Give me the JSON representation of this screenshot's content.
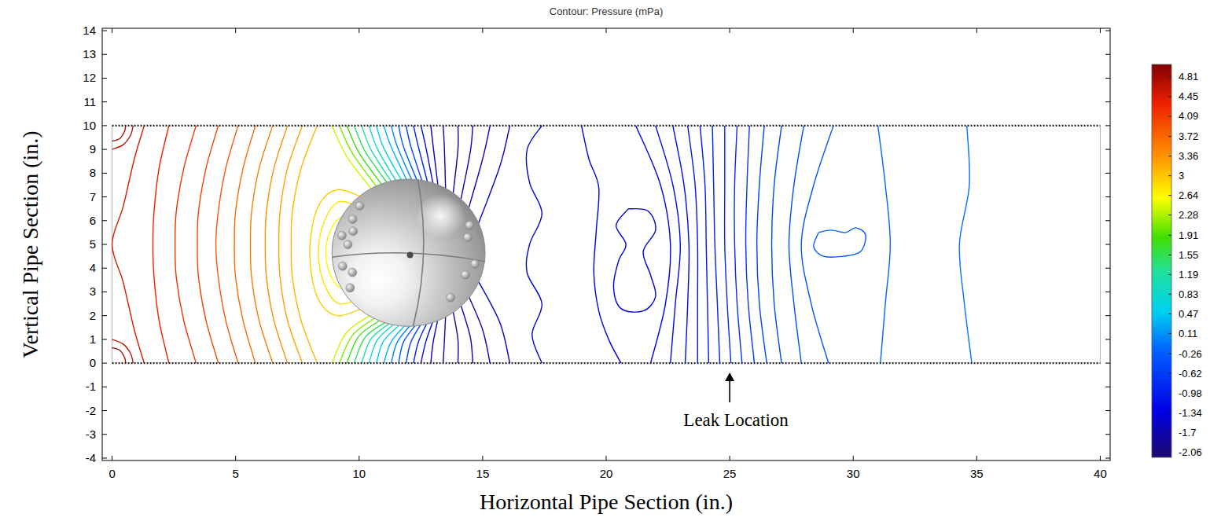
{
  "chart_data": {
    "type": "contour",
    "title": "Contour: Pressure (mPa)",
    "x_label": "Horizontal Pipe Section (in.)",
    "y_label": "Vertical Pipe Section (in.)",
    "xlim": [
      -0.4,
      40.4
    ],
    "ylim": [
      -4.1,
      14.1
    ],
    "xticks": [
      0,
      5,
      10,
      15,
      20,
      25,
      30,
      35,
      40
    ],
    "yticks": [
      -4,
      -3,
      -2,
      -1,
      0,
      1,
      2,
      3,
      4,
      5,
      6,
      7,
      8,
      9,
      10,
      11,
      12,
      13,
      14
    ],
    "colorbar": {
      "range": [
        -2.16,
        5.04
      ],
      "ticks": [
        4.81,
        4.45,
        4.09,
        3.72,
        3.36,
        3,
        2.64,
        2.28,
        1.91,
        1.55,
        1.19,
        0.83,
        0.47,
        0.11,
        -0.26,
        -0.62,
        -0.98,
        -1.34,
        -1.7,
        -2.06
      ]
    },
    "pipe": {
      "x": [
        0,
        40
      ],
      "y": [
        0,
        10
      ]
    },
    "sphere": {
      "center": [
        12,
        4.65
      ],
      "radius": 3.1
    },
    "annotation": {
      "text": "Leak Location",
      "x": 25
    },
    "contours": [
      {
        "level": 4.81,
        "x": [
          0,
          0.3,
          0.5,
          0.55
        ],
        "y": [
          9.35,
          9.45,
          9.75,
          10
        ]
      },
      {
        "level": 4.81,
        "x": [
          0,
          0.3,
          0.5,
          0.55
        ],
        "y": [
          0.65,
          0.55,
          0.25,
          0
        ]
      },
      {
        "level": 4.63,
        "x": [
          0,
          0.45,
          0.75,
          0.85
        ],
        "y": [
          9.0,
          9.2,
          9.6,
          10
        ]
      },
      {
        "level": 4.63,
        "x": [
          0,
          0.45,
          0.75,
          0.85
        ],
        "y": [
          1.0,
          0.8,
          0.4,
          0
        ]
      },
      {
        "level": 4.45,
        "x": [
          1.3,
          0.9,
          0.45,
          0,
          0.45,
          0.9,
          1.3
        ],
        "y": [
          10,
          8.6,
          6.6,
          5,
          3.4,
          1.4,
          0
        ]
      },
      {
        "level": 4.3,
        "x": [
          2.3,
          1.9,
          1.7,
          1.65,
          1.7,
          1.9,
          2.3
        ],
        "y": [
          10,
          8.2,
          6.4,
          5,
          3.6,
          1.8,
          0
        ]
      },
      {
        "level": 4.15,
        "x": [
          3.4,
          2.9,
          2.6,
          2.55,
          2.6,
          2.9,
          3.4
        ],
        "y": [
          10,
          8.2,
          6.4,
          5,
          3.6,
          1.8,
          0
        ]
      },
      {
        "level": 4.0,
        "x": [
          4.3,
          3.8,
          3.5,
          3.45,
          3.5,
          3.8,
          4.3
        ],
        "y": [
          10,
          8.2,
          6.4,
          5,
          3.6,
          1.8,
          0
        ]
      },
      {
        "level": 3.85,
        "x": [
          5.1,
          4.6,
          4.3,
          4.2,
          4.3,
          4.6,
          5.1
        ],
        "y": [
          10,
          8.2,
          6.4,
          5,
          3.6,
          1.8,
          0
        ]
      },
      {
        "level": 3.7,
        "x": [
          5.8,
          5.3,
          5.0,
          4.95,
          5.0,
          5.3,
          5.8
        ],
        "y": [
          10,
          8.2,
          6.4,
          5,
          3.6,
          1.8,
          0
        ]
      },
      {
        "level": 3.55,
        "x": [
          6.5,
          5.95,
          5.65,
          5.6,
          5.65,
          5.95,
          6.5
        ],
        "y": [
          10,
          8.2,
          6.4,
          5,
          3.6,
          1.8,
          0
        ]
      },
      {
        "level": 3.4,
        "x": [
          7.1,
          6.55,
          6.25,
          6.2,
          6.25,
          6.55,
          7.1
        ],
        "y": [
          10,
          8.2,
          6.4,
          5,
          3.6,
          1.8,
          0
        ]
      },
      {
        "level": 3.25,
        "x": [
          7.7,
          7.1,
          6.8,
          6.75,
          6.8,
          7.1,
          7.7
        ],
        "y": [
          10,
          8.2,
          6.4,
          5,
          3.6,
          1.8,
          0
        ]
      },
      {
        "level": 3.1,
        "x": [
          8.3,
          7.65,
          7.3,
          7.25,
          7.3,
          7.65,
          8.3
        ],
        "y": [
          10,
          8.2,
          6.4,
          5,
          3.6,
          1.8,
          0
        ]
      },
      {
        "level": 2.95,
        "x": [
          10.3,
          9.1,
          8.3,
          8.0,
          8.3,
          9.1,
          10.3
        ],
        "y": [
          6.9,
          7.3,
          6.5,
          4.65,
          2.8,
          2.0,
          2.4
        ]
      },
      {
        "level": 2.8,
        "x": [
          10.2,
          9.2,
          8.6,
          8.35,
          8.6,
          9.2,
          10.2
        ],
        "y": [
          6.5,
          6.8,
          6.0,
          4.65,
          3.3,
          2.5,
          2.8
        ]
      },
      {
        "level": 2.65,
        "x": [
          10.0,
          9.2,
          8.8,
          8.65,
          8.8,
          9.2,
          10.0
        ],
        "y": [
          6.1,
          6.1,
          5.5,
          4.65,
          3.8,
          3.2,
          3.2
        ]
      },
      {
        "level": 2.4,
        "x": [
          8.9,
          9.5,
          10.6
        ],
        "y": [
          10,
          8.7,
          7.2
        ]
      },
      {
        "level": 2.4,
        "x": [
          8.9,
          9.5,
          10.6
        ],
        "y": [
          0,
          1.3,
          2.1
        ]
      },
      {
        "level": 2.1,
        "x": [
          9.2,
          9.75,
          10.8
        ],
        "y": [
          10,
          8.8,
          7.3
        ]
      },
      {
        "level": 2.1,
        "x": [
          9.2,
          9.75,
          10.8
        ],
        "y": [
          0,
          1.2,
          2.0
        ]
      },
      {
        "level": 1.8,
        "x": [
          9.5,
          10.0,
          11.0
        ],
        "y": [
          10,
          8.85,
          7.4
        ]
      },
      {
        "level": 1.8,
        "x": [
          9.5,
          10.0,
          11.0
        ],
        "y": [
          0,
          1.15,
          1.9
        ]
      },
      {
        "level": 1.5,
        "x": [
          9.8,
          10.25,
          11.2
        ],
        "y": [
          10,
          8.9,
          7.5
        ]
      },
      {
        "level": 1.5,
        "x": [
          9.8,
          10.25,
          11.2
        ],
        "y": [
          0,
          1.1,
          1.8
        ]
      },
      {
        "level": 1.2,
        "x": [
          10.1,
          10.5,
          11.4
        ],
        "y": [
          10,
          8.95,
          7.5
        ]
      },
      {
        "level": 1.2,
        "x": [
          10.1,
          10.5,
          11.4
        ],
        "y": [
          0,
          1.05,
          1.8
        ]
      },
      {
        "level": 0.9,
        "x": [
          10.4,
          10.75,
          11.6
        ],
        "y": [
          10,
          9.0,
          7.5
        ]
      },
      {
        "level": 0.9,
        "x": [
          10.4,
          10.75,
          11.6
        ],
        "y": [
          0,
          1.0,
          1.8
        ]
      },
      {
        "level": 0.6,
        "x": [
          10.7,
          11.0,
          11.8
        ],
        "y": [
          10,
          9.05,
          7.55
        ]
      },
      {
        "level": 0.6,
        "x": [
          10.7,
          11.0,
          11.8
        ],
        "y": [
          0,
          0.95,
          1.75
        ]
      },
      {
        "level": 0.3,
        "x": [
          11.0,
          11.3,
          12.0
        ],
        "y": [
          10,
          9.1,
          7.55
        ]
      },
      {
        "level": 0.3,
        "x": [
          11.0,
          11.3,
          12.0
        ],
        "y": [
          0,
          0.9,
          1.75
        ]
      },
      {
        "level": 0.0,
        "x": [
          11.3,
          11.55,
          12.2
        ],
        "y": [
          10,
          9.1,
          7.55
        ]
      },
      {
        "level": 0.0,
        "x": [
          11.3,
          11.55,
          12.2
        ],
        "y": [
          0,
          0.9,
          1.75
        ]
      },
      {
        "level": -0.3,
        "x": [
          11.6,
          11.8,
          12.4
        ],
        "y": [
          10,
          9.1,
          7.55
        ]
      },
      {
        "level": -0.3,
        "x": [
          11.6,
          11.8,
          12.4
        ],
        "y": [
          0,
          0.9,
          1.75
        ]
      },
      {
        "level": -0.6,
        "x": [
          11.9,
          12.1,
          12.6
        ],
        "y": [
          10,
          9.1,
          7.5
        ]
      },
      {
        "level": -0.6,
        "x": [
          11.9,
          12.1,
          12.6
        ],
        "y": [
          0,
          0.9,
          1.8
        ]
      },
      {
        "level": -0.9,
        "x": [
          12.2,
          12.4,
          12.8
        ],
        "y": [
          10,
          9.1,
          7.5
        ]
      },
      {
        "level": -0.9,
        "x": [
          12.2,
          12.4,
          12.8
        ],
        "y": [
          0,
          0.9,
          1.8
        ]
      },
      {
        "level": -1.2,
        "x": [
          12.5,
          12.7,
          13.0
        ],
        "y": [
          10,
          9.1,
          7.5
        ]
      },
      {
        "level": -1.2,
        "x": [
          12.5,
          12.7,
          13.0
        ],
        "y": [
          0,
          0.9,
          1.8
        ]
      },
      {
        "level": -1.5,
        "x": [
          12.9,
          13.0,
          13.2
        ],
        "y": [
          10,
          9.1,
          7.4
        ]
      },
      {
        "level": -1.5,
        "x": [
          12.9,
          13.0,
          13.2
        ],
        "y": [
          0,
          0.9,
          1.9
        ]
      },
      {
        "level": -1.8,
        "x": [
          13.4,
          13.45,
          13.5
        ],
        "y": [
          10,
          9.1,
          7.3
        ]
      },
      {
        "level": -1.8,
        "x": [
          13.4,
          13.45,
          13.5
        ],
        "y": [
          0,
          0.9,
          2.0
        ]
      },
      {
        "level": -1.9,
        "x": [
          14.0,
          14.0,
          13.8
        ],
        "y": [
          10,
          9.0,
          7.1
        ]
      },
      {
        "level": -1.9,
        "x": [
          14.0,
          14.0,
          13.8
        ],
        "y": [
          0,
          1.0,
          2.2
        ]
      },
      {
        "level": -1.7,
        "x": [
          14.6,
          14.5,
          14.1
        ],
        "y": [
          10,
          8.9,
          6.8
        ]
      },
      {
        "level": -1.7,
        "x": [
          14.6,
          14.5,
          14.1
        ],
        "y": [
          0,
          1.1,
          2.5
        ]
      },
      {
        "level": -1.6,
        "x": [
          15.3,
          15.0,
          14.4
        ],
        "y": [
          10,
          8.6,
          6.4
        ]
      },
      {
        "level": -1.6,
        "x": [
          15.3,
          15.0,
          14.4
        ],
        "y": [
          0,
          1.4,
          2.9
        ]
      },
      {
        "level": -1.5,
        "x": [
          16.1,
          15.7,
          14.8
        ],
        "y": [
          10,
          8.3,
          5.8
        ]
      },
      {
        "level": -1.5,
        "x": [
          16.1,
          15.7,
          14.8
        ],
        "y": [
          0,
          1.7,
          3.5
        ]
      },
      {
        "level": -1.45,
        "x": [
          17.4,
          16.8,
          16.9,
          17.4,
          16.9,
          16.8,
          17.4,
          17.0,
          17.4
        ],
        "y": [
          10,
          9,
          7.6,
          6.3,
          5,
          3.8,
          2.5,
          1.2,
          0
        ]
      },
      {
        "level": -1.4,
        "x": [
          19.0,
          19.3,
          19.7,
          19.6,
          19.5,
          19.7,
          20.1,
          20.6
        ],
        "y": [
          10,
          8.6,
          7.4,
          5.6,
          3.8,
          2.2,
          1,
          0
        ]
      },
      {
        "level": -1.38,
        "x": [
          20.9,
          21.7,
          22.0,
          21.5,
          21.8,
          22.0,
          21.5,
          20.6,
          20.3,
          20.5,
          20.8,
          20.4,
          20.9
        ],
        "y": [
          6.5,
          6.4,
          5.6,
          4.7,
          3.7,
          2.8,
          2.2,
          2.3,
          3.2,
          4.3,
          5.0,
          5.8,
          6.5
        ]
      },
      {
        "level": -1.3,
        "x": [
          21.2,
          22.2,
          22.6,
          22.4,
          21.8
        ],
        "y": [
          10,
          7.5,
          5,
          2.5,
          0
        ]
      },
      {
        "level": -1.22,
        "x": [
          22.0,
          22.7,
          23.0,
          22.8,
          22.6
        ],
        "y": [
          10,
          7.5,
          5,
          2.5,
          0
        ]
      },
      {
        "level": -1.14,
        "x": [
          22.7,
          23.15,
          23.35,
          23.3,
          23.2
        ],
        "y": [
          10,
          7.5,
          5,
          2.5,
          0
        ]
      },
      {
        "level": -1.06,
        "x": [
          23.3,
          23.6,
          23.7,
          23.7,
          23.7
        ],
        "y": [
          10,
          7.5,
          5,
          2.5,
          0
        ]
      },
      {
        "level": -0.98,
        "x": [
          23.8,
          24.0,
          24.05,
          24.1,
          24.15
        ],
        "y": [
          10,
          7.5,
          5,
          2.5,
          0
        ]
      },
      {
        "level": -0.9,
        "x": [
          24.3,
          24.35,
          24.4,
          24.5,
          24.6
        ],
        "y": [
          10,
          7.5,
          5,
          2.5,
          0
        ]
      },
      {
        "level": -0.82,
        "x": [
          24.8,
          24.8,
          24.8,
          24.9,
          25.05
        ],
        "y": [
          10,
          7.5,
          5,
          2.5,
          0
        ]
      },
      {
        "level": -0.74,
        "x": [
          25.3,
          25.2,
          25.2,
          25.3,
          25.5
        ],
        "y": [
          10,
          7.5,
          5,
          2.5,
          0
        ]
      },
      {
        "level": -0.66,
        "x": [
          25.8,
          25.7,
          25.65,
          25.75,
          26.0
        ],
        "y": [
          10,
          7.5,
          5,
          2.5,
          0
        ]
      },
      {
        "level": -0.58,
        "x": [
          26.4,
          26.2,
          26.1,
          26.2,
          26.5
        ],
        "y": [
          10,
          7.5,
          5,
          2.5,
          0
        ]
      },
      {
        "level": -0.5,
        "x": [
          27.1,
          26.8,
          26.7,
          26.8,
          27.1
        ],
        "y": [
          10,
          7.5,
          5,
          2.5,
          0
        ]
      },
      {
        "level": -0.42,
        "x": [
          28.0,
          27.6,
          27.4,
          27.6,
          27.9
        ],
        "y": [
          10,
          7.5,
          5,
          2.5,
          0
        ]
      },
      {
        "level": -0.34,
        "x": [
          29.2,
          28.4,
          27.9,
          28.3,
          29.0
        ],
        "y": [
          10,
          7.5,
          5,
          2.5,
          0
        ]
      },
      {
        "level": -0.26,
        "x": [
          28.6,
          29.1,
          29.7,
          30.1,
          30.5,
          30.3,
          29.6,
          28.8,
          28.4,
          28.6
        ],
        "y": [
          5.5,
          5.6,
          5.5,
          5.7,
          5.4,
          4.7,
          4.5,
          4.5,
          4.9,
          5.5
        ]
      },
      {
        "level": -0.18,
        "x": [
          31.0,
          31.3,
          31.5,
          31.3,
          31.1
        ],
        "y": [
          10,
          7.5,
          5,
          2.5,
          0
        ]
      },
      {
        "level": -0.1,
        "x": [
          34.6,
          34.7,
          34.3,
          34.5,
          34.8
        ],
        "y": [
          10,
          7.5,
          5,
          2.5,
          0
        ]
      }
    ]
  }
}
